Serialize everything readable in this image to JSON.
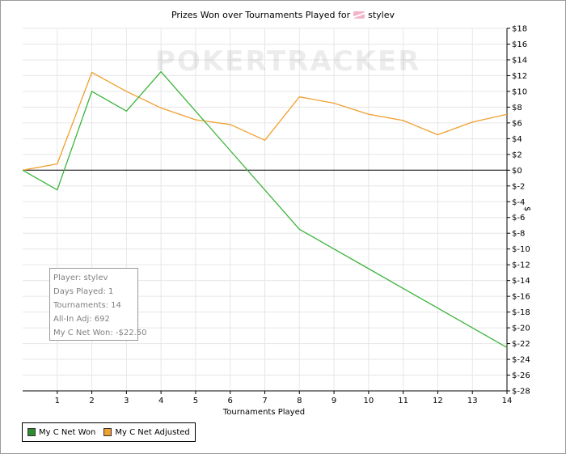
{
  "chart_data": {
    "type": "line",
    "title": "Prizes Won over Tournaments Played for",
    "title_player": "stylev",
    "watermark": "POKERTRACKER",
    "xlabel": "Tournaments Played",
    "ylabel": "$",
    "xlim": [
      0,
      14
    ],
    "ylim": [
      -28,
      18
    ],
    "x_ticks": [
      1,
      2,
      3,
      4,
      5,
      6,
      7,
      8,
      9,
      10,
      11,
      12,
      13,
      14
    ],
    "y_tick_step": 2,
    "y_tick_prefix": "$",
    "grid": true,
    "y_axis_side": "right",
    "legend_placement": "bottom-left",
    "series": [
      {
        "name": "My C Net Won",
        "color": "#3cb43c",
        "x": [
          0,
          1,
          2,
          3,
          4,
          5,
          6,
          7,
          8,
          9,
          10,
          11,
          12,
          13,
          14
        ],
        "values": [
          0,
          -2.5,
          10,
          7.5,
          12.5,
          7.5,
          2.5,
          -2.5,
          -7.5,
          -10,
          -12.5,
          -15,
          -17.5,
          -20,
          -22.5
        ]
      },
      {
        "name": "My C Net Adjusted",
        "color": "#f0a030",
        "x": [
          0,
          1,
          2,
          3,
          4,
          5,
          6,
          7,
          8,
          9,
          10,
          11,
          12,
          13,
          14
        ],
        "values": [
          0,
          0.8,
          12.4,
          10,
          7.9,
          6.4,
          5.8,
          3.8,
          9.3,
          8.5,
          7.1,
          6.3,
          4.5,
          6.1,
          7.1
        ]
      }
    ]
  },
  "info_box": {
    "player": "Player: stylev",
    "days_played": "Days Played: 1",
    "tournaments": "Tournaments: 14",
    "all_in_adj": "All-In Adj: 692",
    "net_won": "My C Net Won: -$22.50"
  },
  "legend": {
    "items": [
      {
        "label": "My C Net Won",
        "color": "#2e8b2e"
      },
      {
        "label": "My C Net Adjusted",
        "color": "#f0a030"
      }
    ]
  }
}
